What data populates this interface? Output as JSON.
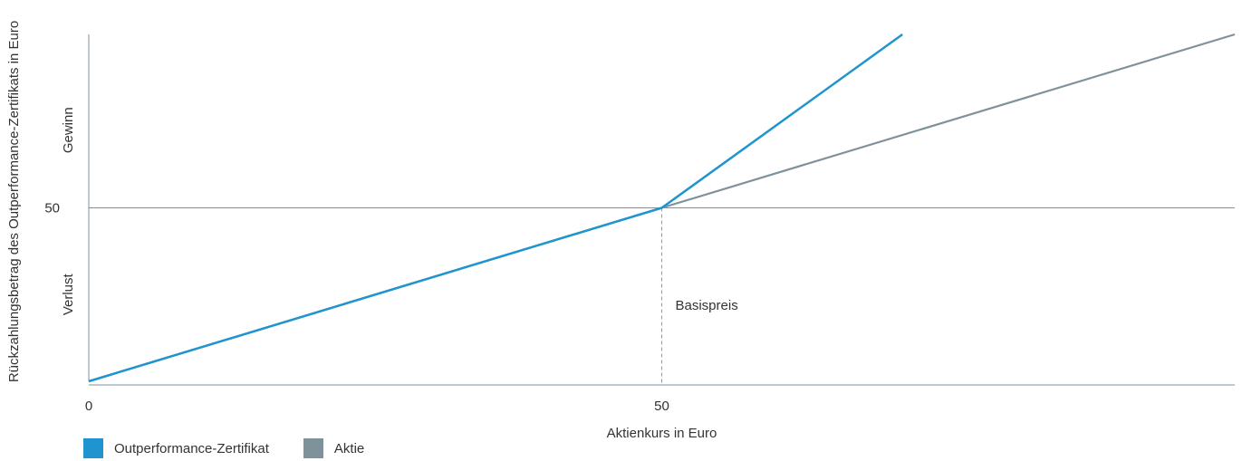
{
  "chart_data": {
    "type": "line",
    "xlabel": "Aktienkurs in Euro",
    "ylabel": "Rückzahlungsbetrag des Outperformance-Zertifikats in Euro",
    "xlim": [
      0,
      100
    ],
    "ylim": [
      0,
      100
    ],
    "xticks": [
      0,
      50
    ],
    "yticks": [
      50
    ],
    "ylabel_regions": {
      "upper": "Gewinn",
      "lower": "Verlust"
    },
    "reference_lines": {
      "horizontal_y": 50,
      "vertical_x": 50
    },
    "annotation": {
      "text": "Basispreis",
      "x": 50
    },
    "grid": false,
    "legend_position": "bottom-left",
    "series": [
      {
        "name": "Outperformance-Zertifikat",
        "color": "#1f94cf",
        "x": [
          0,
          50,
          71
        ],
        "y": [
          0,
          50,
          100
        ]
      },
      {
        "name": "Aktie",
        "color": "#7f929c",
        "x": [
          0,
          50,
          100
        ],
        "y": [
          0,
          50,
          100
        ]
      }
    ]
  }
}
